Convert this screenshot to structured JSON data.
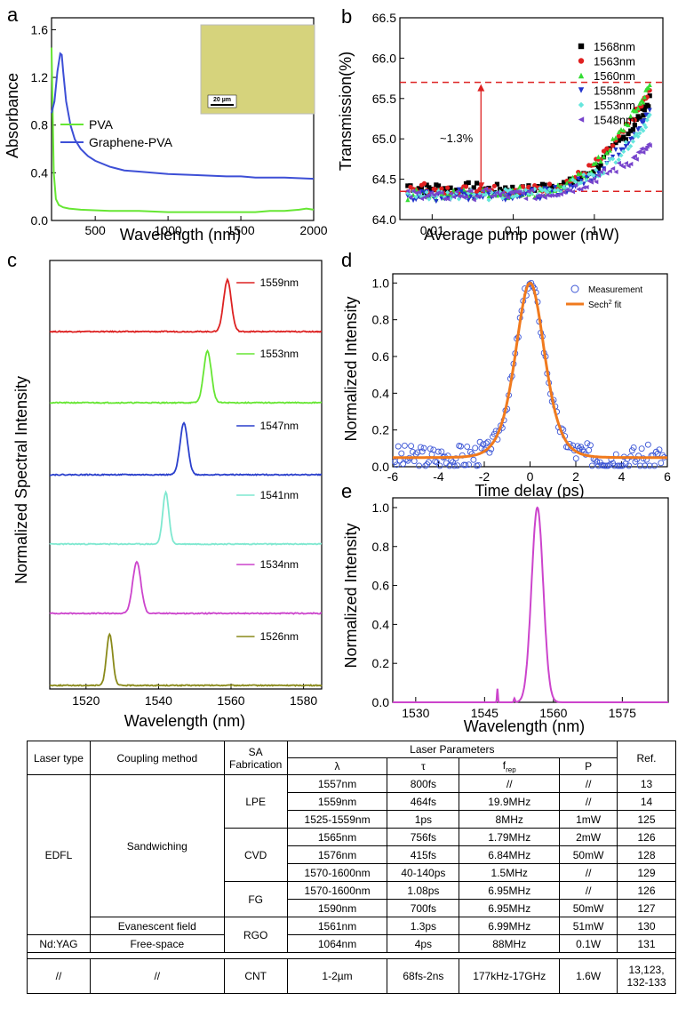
{
  "panels": {
    "a": "a",
    "b": "b",
    "c": "c",
    "d": "d",
    "e": "e"
  },
  "chart_data": [
    {
      "id": "a",
      "type": "line",
      "xlabel": "Wavelength (nm)",
      "ylabel": "Absorbance",
      "xlim": [
        200,
        2000
      ],
      "ylim": [
        0,
        1.7
      ],
      "xticks": [
        500,
        1000,
        1500,
        2000
      ],
      "yticks": [
        0.0,
        0.4,
        0.8,
        1.2,
        1.6
      ],
      "legend": "center-left",
      "inset": {
        "scale_label": "20 µm",
        "color": "#d6d37c"
      },
      "series": [
        {
          "name": "PVA",
          "color": "#66e633",
          "x": [
            200,
            215,
            230,
            250,
            280,
            320,
            400,
            600,
            800,
            1000,
            1200,
            1400,
            1500,
            1600,
            1700,
            1800,
            1900,
            1950,
            2000
          ],
          "y": [
            1.45,
            0.4,
            0.18,
            0.13,
            0.11,
            0.1,
            0.09,
            0.08,
            0.08,
            0.07,
            0.07,
            0.07,
            0.07,
            0.07,
            0.08,
            0.08,
            0.09,
            0.1,
            0.09
          ]
        },
        {
          "name": "Graphene-PVA",
          "color": "#3d4fd6",
          "x": [
            200,
            220,
            240,
            260,
            270,
            280,
            300,
            330,
            360,
            400,
            450,
            500,
            600,
            700,
            800,
            900,
            1000,
            1200,
            1400,
            1500,
            1600,
            1800,
            2000
          ],
          "y": [
            0.9,
            1.0,
            1.25,
            1.4,
            1.39,
            1.25,
            1.0,
            0.8,
            0.68,
            0.6,
            0.54,
            0.5,
            0.45,
            0.42,
            0.41,
            0.4,
            0.39,
            0.38,
            0.37,
            0.37,
            0.36,
            0.36,
            0.35
          ]
        }
      ]
    },
    {
      "id": "b",
      "type": "scatter",
      "xlabel": "Average pump power (mW)",
      "ylabel": "Transmission(%)",
      "xscale": "log",
      "xlim": [
        0.004,
        7
      ],
      "ylim": [
        64.0,
        66.5
      ],
      "xticks": [
        0.01,
        0.1,
        1
      ],
      "xticklabels": [
        "0.01",
        "0.1",
        "1"
      ],
      "yticks": [
        64.0,
        64.5,
        65.0,
        65.5,
        66.0,
        66.5
      ],
      "hlines": [
        65.7,
        64.35
      ],
      "annotation": "~1.3%",
      "legend": "top-right",
      "series": [
        {
          "name": "1568nm",
          "color": "#000000",
          "marker": "square",
          "x": [
            0.005,
            0.008,
            0.012,
            0.02,
            0.03,
            0.05,
            0.08,
            0.12,
            0.2,
            0.3,
            0.5,
            0.8,
            1.2,
            2,
            3,
            4,
            5
          ],
          "y": [
            64.42,
            64.38,
            64.4,
            64.36,
            64.41,
            64.37,
            64.39,
            64.35,
            64.4,
            64.42,
            64.45,
            64.55,
            64.7,
            64.95,
            65.15,
            65.35,
            65.5
          ]
        },
        {
          "name": "1563nm",
          "color": "#e02020",
          "marker": "circle",
          "x": [
            0.005,
            0.008,
            0.012,
            0.02,
            0.03,
            0.05,
            0.08,
            0.12,
            0.2,
            0.3,
            0.5,
            0.8,
            1.2,
            2,
            3,
            4,
            5
          ],
          "y": [
            64.35,
            64.4,
            64.33,
            64.38,
            64.36,
            64.4,
            64.34,
            64.38,
            64.37,
            64.4,
            64.48,
            64.6,
            64.75,
            65.0,
            65.25,
            65.45,
            65.6
          ]
        },
        {
          "name": "1560nm",
          "color": "#33dd33",
          "marker": "triangle-up",
          "x": [
            0.005,
            0.008,
            0.012,
            0.02,
            0.03,
            0.05,
            0.08,
            0.12,
            0.2,
            0.3,
            0.5,
            0.8,
            1.2,
            2,
            3,
            4,
            5
          ],
          "y": [
            64.3,
            64.33,
            64.31,
            64.35,
            64.3,
            64.34,
            64.32,
            64.36,
            64.33,
            64.38,
            64.45,
            64.58,
            64.75,
            65.05,
            65.3,
            65.5,
            65.7
          ]
        },
        {
          "name": "1558nm",
          "color": "#2233cc",
          "marker": "triangle-down",
          "x": [
            0.005,
            0.008,
            0.012,
            0.02,
            0.03,
            0.05,
            0.08,
            0.12,
            0.2,
            0.3,
            0.5,
            0.8,
            1.2,
            2,
            3,
            4,
            5
          ],
          "y": [
            64.28,
            64.3,
            64.27,
            64.32,
            64.29,
            64.31,
            64.3,
            64.33,
            64.31,
            64.34,
            64.4,
            64.5,
            64.62,
            64.85,
            65.05,
            65.2,
            65.35
          ]
        },
        {
          "name": "1553nm",
          "color": "#66e6dd",
          "marker": "diamond",
          "x": [
            0.005,
            0.008,
            0.012,
            0.02,
            0.03,
            0.05,
            0.08,
            0.12,
            0.2,
            0.3,
            0.5,
            0.8,
            1.2,
            2,
            3,
            4,
            5
          ],
          "y": [
            64.33,
            64.29,
            64.32,
            64.3,
            64.34,
            64.3,
            64.32,
            64.31,
            64.35,
            64.36,
            64.42,
            64.52,
            64.6,
            64.8,
            65.0,
            65.15,
            65.3
          ]
        },
        {
          "name": "1548nm",
          "color": "#7744cc",
          "marker": "triangle-left",
          "x": [
            0.005,
            0.008,
            0.012,
            0.02,
            0.03,
            0.05,
            0.08,
            0.12,
            0.2,
            0.3,
            0.5,
            0.8,
            1.2,
            2,
            3,
            4,
            5
          ],
          "y": [
            64.3,
            64.32,
            64.28,
            64.31,
            64.3,
            64.33,
            64.29,
            64.32,
            64.3,
            64.33,
            64.38,
            64.45,
            64.55,
            64.65,
            64.75,
            64.85,
            64.9
          ]
        }
      ]
    },
    {
      "id": "c",
      "type": "line",
      "xlabel": "Wavelength (nm)",
      "ylabel": "Normalized Spectral Intensity",
      "xlim": [
        1510,
        1585
      ],
      "xticks": [
        1520,
        1540,
        1560,
        1580
      ],
      "series": [
        {
          "name": "1559nm",
          "color": "#dd2222",
          "center": 1559,
          "width": 1.5
        },
        {
          "name": "1553nm",
          "color": "#66e633",
          "center": 1553.5,
          "width": 1.5
        },
        {
          "name": "1547nm",
          "color": "#2a3fcc",
          "center": 1547,
          "width": 1.5
        },
        {
          "name": "1541nm",
          "color": "#7fe8d0",
          "center": 1542,
          "width": 1.2
        },
        {
          "name": "1534nm",
          "color": "#cc44cc",
          "center": 1534,
          "width": 1.6
        },
        {
          "name": "1526nm",
          "color": "#8a8a1a",
          "center": 1526.5,
          "width": 1.2
        }
      ]
    },
    {
      "id": "d",
      "type": "scatter",
      "xlabel": "Time delay (ps)",
      "ylabel": "Normalized Intensity",
      "xlim": [
        -6,
        6
      ],
      "ylim": [
        0,
        1.05
      ],
      "xticks": [
        -6,
        -4,
        -2,
        0,
        2,
        4,
        6
      ],
      "yticks": [
        0.0,
        0.2,
        0.4,
        0.6,
        0.8,
        1.0
      ],
      "legend": "top-right",
      "series": [
        {
          "name": "Measurement",
          "color": "#3b55d6",
          "marker": "open-circle"
        },
        {
          "name": "Sech",
          "superscript": "2",
          "suffix": " fit",
          "color": "#f07a1e",
          "marker": "line",
          "fwhm": 1.5,
          "baseline": 0.05
        }
      ]
    },
    {
      "id": "e",
      "type": "line",
      "xlabel": "Wavelength (nm)",
      "ylabel": "Normalized Intensity",
      "xlim": [
        1525,
        1585
      ],
      "ylim": [
        0,
        1.05
      ],
      "xticks": [
        1530,
        1545,
        1560,
        1575
      ],
      "yticks": [
        0.0,
        0.2,
        0.4,
        0.6,
        0.8,
        1.0
      ],
      "series": [
        {
          "name": "",
          "color": "#cc44cc",
          "center": 1556.5,
          "width": 1.8
        }
      ]
    },
    {
      "id": "table",
      "type": "table",
      "header": {
        "laser_type": "Laser type",
        "coupling": "Coupling method",
        "sa": "SA Fabrication",
        "params": "Laser Parameters",
        "lambda": "λ",
        "tau": "τ",
        "frep": "f",
        "frep_sub": "rep",
        "p": "P",
        "ref": "Ref."
      },
      "groups": {
        "edfl": "EDFL",
        "sandwiching": "Sandwiching",
        "lpe": "LPE",
        "cvd": "CVD",
        "fg": "FG",
        "evanescent": "Evanescent field",
        "rgo": "RGO",
        "ndyag": "Nd:YAG",
        "free_space": "Free-space",
        "na1": "//",
        "na2": "//",
        "cnt": "CNT"
      },
      "rows": [
        [
          "1557nm",
          "800fs",
          "//",
          "//",
          "13"
        ],
        [
          "1559nm",
          "464fs",
          "19.9MHz",
          "//",
          "14"
        ],
        [
          "1525-1559nm",
          "1ps",
          "8MHz",
          "1mW",
          "125"
        ],
        [
          "1565nm",
          "756fs",
          "1.79MHz",
          "2mW",
          "126"
        ],
        [
          "1576nm",
          "415fs",
          "6.84MHz",
          "50mW",
          "128"
        ],
        [
          "1570-1600nm",
          "40-140ps",
          "1.5MHz",
          "//",
          "129"
        ],
        [
          "1570-1600nm",
          "1.08ps",
          "6.95MHz",
          "//",
          "126"
        ],
        [
          "1590nm",
          "700fs",
          "6.95MHz",
          "50mW",
          "127"
        ],
        [
          "1561nm",
          "1.3ps",
          "6.99MHz",
          "51mW",
          "130"
        ],
        [
          "1064nm",
          "4ps",
          "88MHz",
          "0.1W",
          "131"
        ],
        [
          "1-2µm",
          "68fs-2ns",
          "177kHz-17GHz",
          "1.6W",
          "13,123,",
          "132-133"
        ]
      ]
    }
  ]
}
